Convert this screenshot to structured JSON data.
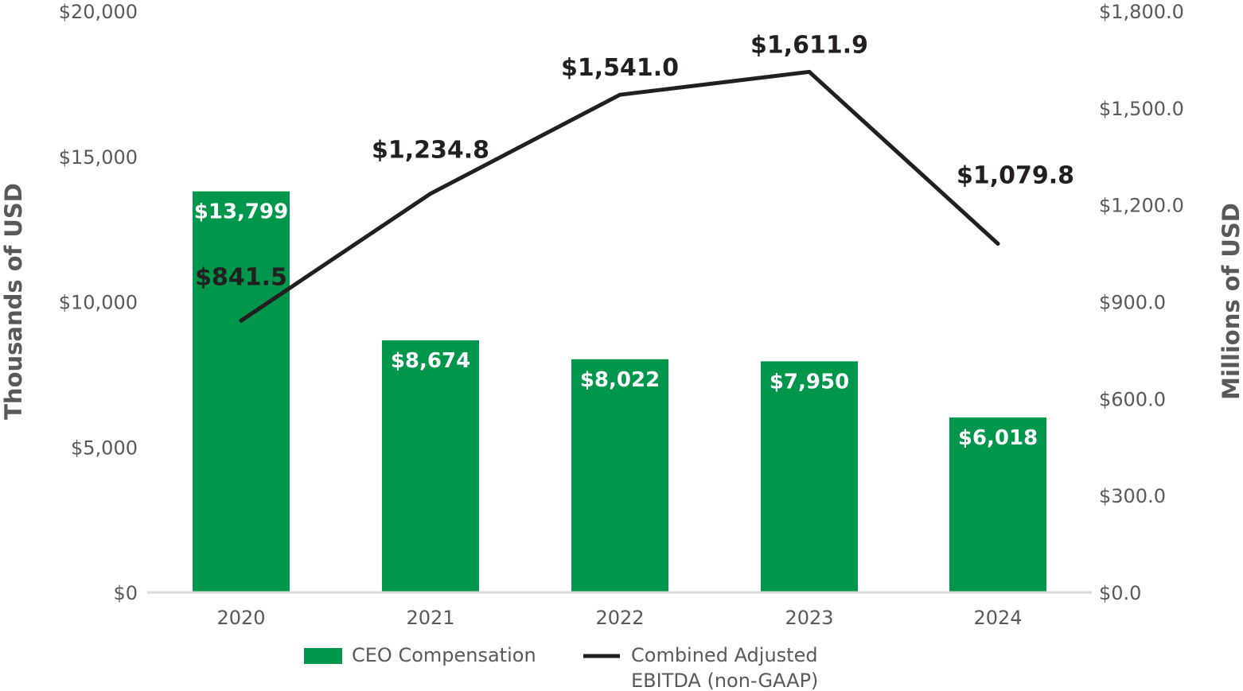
{
  "chart_data": {
    "type": "bar",
    "title": "",
    "xlabel": "",
    "categories": [
      "2020",
      "2021",
      "2022",
      "2023",
      "2024"
    ],
    "series": [
      {
        "name": "CEO Compensation",
        "type": "bar",
        "axis": "left",
        "color": "#00964b",
        "values": [
          13799,
          8674,
          8022,
          7950,
          6018
        ],
        "labels": [
          "$13,799",
          "$8,674",
          "$8,022",
          "$7,950",
          "$6,018"
        ]
      },
      {
        "name_lines": [
          "Combined Adjusted",
          "EBITDA (non-GAAP)"
        ],
        "type": "line",
        "axis": "right",
        "color": "#231f20",
        "values": [
          841.5,
          1234.8,
          1541.0,
          1611.9,
          1079.8
        ],
        "labels": [
          "$841.5",
          "$1,234.8",
          "$1,541.0",
          "$1,611.9",
          "$1,079.8"
        ]
      }
    ],
    "y_left": {
      "label": "Thousands of USD",
      "ylim": [
        0,
        20000
      ],
      "ticks": [
        0,
        5000,
        10000,
        15000,
        20000
      ],
      "tick_labels": [
        "$0",
        "$5,000",
        "$10,000",
        "$15,000",
        "$20,000"
      ]
    },
    "y_right": {
      "label": "Millions of USD",
      "ylim": [
        0,
        1800
      ],
      "ticks": [
        0,
        300,
        600,
        900,
        1200,
        1500,
        1800
      ],
      "tick_labels": [
        "$0.0",
        "$300.0",
        "$600.0",
        "$900.0",
        "$1,200.0",
        "$1,500.0",
        "$1,800.0"
      ]
    },
    "grid": false,
    "legend": "bottom-center",
    "colors": {
      "axis_line": "#d9d9d9"
    }
  }
}
